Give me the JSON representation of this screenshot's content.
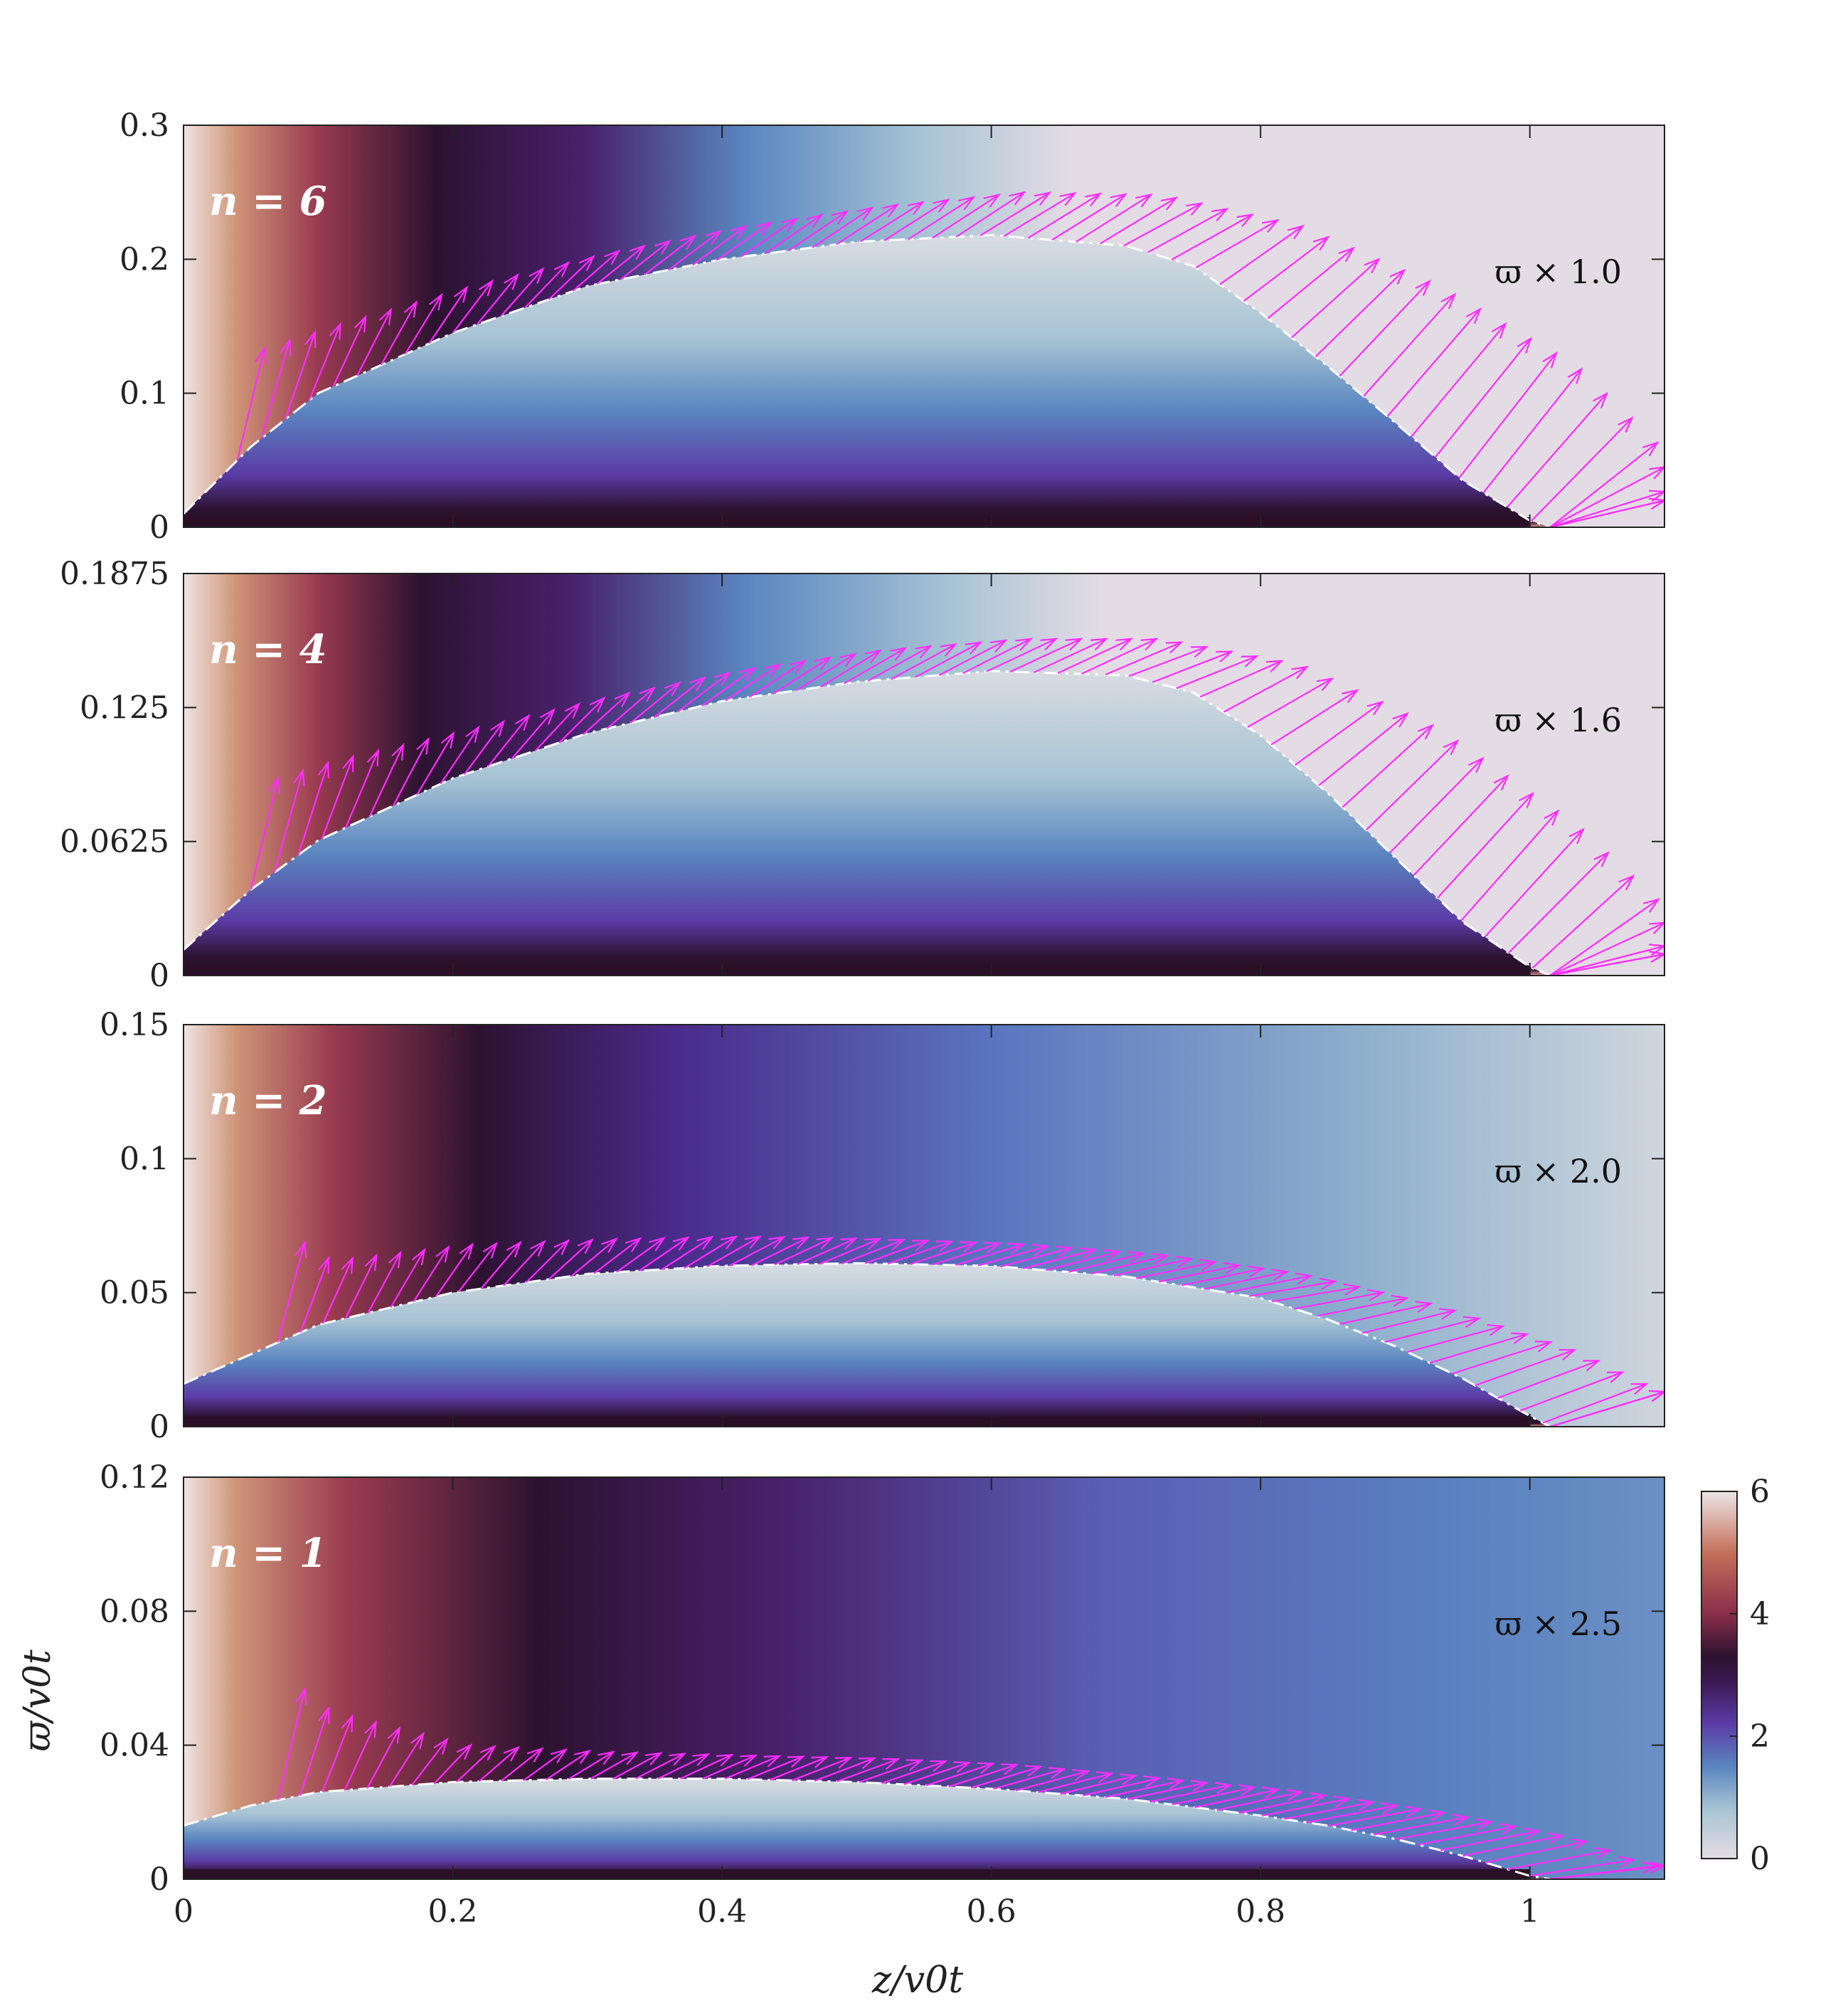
{
  "chart_data": [
    {
      "type": "heatmap",
      "panel_label": "n = 6",
      "scale_annotation": "ϖ × 1.0",
      "n": 6,
      "scale_factor": 1.0,
      "xlim": [
        0,
        1.1
      ],
      "ylim": [
        0,
        0.3
      ],
      "yticks": [
        0,
        0.1,
        0.2,
        0.3
      ],
      "ytick_labels": [
        "0",
        "0.1",
        "0.2",
        "0.3"
      ],
      "xticks": [
        0,
        0.2,
        0.4,
        0.6,
        0.8,
        1.0
      ],
      "xtick_labels": [],
      "boundary_curve": {
        "z": [
          0,
          0.05,
          0.1,
          0.2,
          0.3,
          0.4,
          0.5,
          0.6,
          0.7,
          0.75,
          0.8,
          0.85,
          0.9,
          0.95,
          1.0,
          1.015
        ],
        "w": [
          0.01,
          0.06,
          0.1,
          0.145,
          0.18,
          0.2,
          0.213,
          0.218,
          0.21,
          0.195,
          0.16,
          0.12,
          0.078,
          0.035,
          0.005,
          0.0
        ]
      },
      "arrow_envelope": {
        "z": [
          0.04,
          0.1,
          0.2,
          0.3,
          0.4,
          0.5,
          0.6,
          0.7,
          0.8,
          0.9,
          1.0,
          1.1
        ],
        "w": [
          0.13,
          0.15,
          0.18,
          0.205,
          0.225,
          0.24,
          0.25,
          0.248,
          0.225,
          0.18,
          0.12,
          0.02
        ]
      }
    },
    {
      "type": "heatmap",
      "panel_label": "n = 4",
      "scale_annotation": "ϖ × 1.6",
      "n": 4,
      "scale_factor": 1.6,
      "xlim": [
        0,
        1.1
      ],
      "ylim": [
        0,
        0.1875
      ],
      "yticks": [
        0,
        0.0625,
        0.125,
        0.1875
      ],
      "ytick_labels": [
        "0",
        "0.0625",
        "0.125",
        "0.1875"
      ],
      "xticks": [
        0,
        0.2,
        0.4,
        0.6,
        0.8,
        1.0
      ],
      "xtick_labels": [],
      "boundary_curve": {
        "z": [
          0,
          0.05,
          0.1,
          0.2,
          0.3,
          0.4,
          0.5,
          0.6,
          0.7,
          0.75,
          0.8,
          0.85,
          0.9,
          0.95,
          1.0,
          1.015
        ],
        "w": [
          0.012,
          0.04,
          0.063,
          0.092,
          0.113,
          0.128,
          0.137,
          0.142,
          0.14,
          0.132,
          0.112,
          0.085,
          0.055,
          0.025,
          0.004,
          0.0
        ]
      },
      "arrow_envelope": {
        "z": [
          0.05,
          0.1,
          0.2,
          0.3,
          0.4,
          0.5,
          0.6,
          0.7,
          0.8,
          0.9,
          1.0,
          1.1
        ],
        "w": [
          0.09,
          0.1,
          0.115,
          0.13,
          0.143,
          0.152,
          0.157,
          0.157,
          0.145,
          0.115,
          0.07,
          0.01
        ]
      }
    },
    {
      "type": "heatmap",
      "panel_label": "n = 2",
      "scale_annotation": "ϖ × 2.0",
      "n": 2,
      "scale_factor": 2.0,
      "xlim": [
        0,
        1.1
      ],
      "ylim": [
        0,
        0.15
      ],
      "yticks": [
        0,
        0.05,
        0.1,
        0.15
      ],
      "ytick_labels": [
        "0",
        "0.05",
        "0.1",
        "0.15"
      ],
      "xticks": [
        0,
        0.2,
        0.4,
        0.6,
        0.8,
        1.0
      ],
      "xtick_labels": [],
      "boundary_curve": {
        "z": [
          0,
          0.05,
          0.1,
          0.2,
          0.3,
          0.4,
          0.5,
          0.6,
          0.7,
          0.8,
          0.85,
          0.9,
          0.95,
          1.0,
          1.015
        ],
        "w": [
          0.016,
          0.027,
          0.038,
          0.05,
          0.057,
          0.06,
          0.061,
          0.06,
          0.056,
          0.048,
          0.04,
          0.03,
          0.018,
          0.004,
          0.0
        ]
      },
      "arrow_envelope": {
        "z": [
          0.07,
          0.1,
          0.2,
          0.3,
          0.4,
          0.5,
          0.6,
          0.7,
          0.8,
          0.9,
          1.0,
          1.06
        ],
        "w": [
          0.072,
          0.062,
          0.068,
          0.07,
          0.071,
          0.07,
          0.068,
          0.064,
          0.057,
          0.045,
          0.028,
          0.013
        ]
      }
    },
    {
      "type": "heatmap",
      "panel_label": "n = 1",
      "scale_annotation": "ϖ × 2.5",
      "n": 1,
      "scale_factor": 2.5,
      "xlim": [
        0,
        1.1
      ],
      "ylim": [
        0,
        0.12
      ],
      "yticks": [
        0,
        0.04,
        0.08,
        0.12
      ],
      "ytick_labels": [
        "0",
        "0.04",
        "0.08",
        "0.12"
      ],
      "xticks": [
        0,
        0.2,
        0.4,
        0.6,
        0.8,
        1.0
      ],
      "xtick_labels": [
        "0",
        "0.2",
        "0.4",
        "0.6",
        "0.8",
        "1"
      ],
      "boundary_curve": {
        "z": [
          0,
          0.05,
          0.1,
          0.2,
          0.3,
          0.4,
          0.5,
          0.6,
          0.7,
          0.8,
          0.85,
          0.9,
          0.95,
          1.0,
          1.015
        ],
        "w": [
          0.016,
          0.022,
          0.026,
          0.029,
          0.03,
          0.03,
          0.029,
          0.027,
          0.024,
          0.019,
          0.016,
          0.012,
          0.007,
          0.001,
          0.0
        ]
      },
      "arrow_envelope": {
        "z": [
          0.07,
          0.1,
          0.2,
          0.3,
          0.4,
          0.5,
          0.6,
          0.7,
          0.8,
          0.9,
          1.0,
          1.05
        ],
        "w": [
          0.06,
          0.05,
          0.04,
          0.038,
          0.037,
          0.036,
          0.034,
          0.03,
          0.026,
          0.02,
          0.012,
          0.004
        ]
      }
    }
  ],
  "axes": {
    "xlabel": "z/v0t",
    "ylabel": "ϖ/v0t"
  },
  "colorbar": {
    "range": [
      0,
      6
    ],
    "ticks": [
      0,
      2,
      4,
      6
    ],
    "tick_labels": [
      "0",
      "2",
      "4",
      "6"
    ],
    "colors": [
      {
        "value": 0,
        "color": "#e4dce4"
      },
      {
        "value": 0.8,
        "color": "#a8c4d4"
      },
      {
        "value": 1.5,
        "color": "#5a86c0"
      },
      {
        "value": 2.2,
        "color": "#5b3ba6"
      },
      {
        "value": 2.9,
        "color": "#3b1952"
      },
      {
        "value": 3.3,
        "color": "#2c1230"
      },
      {
        "value": 4.0,
        "color": "#8a2e4a"
      },
      {
        "value": 5.0,
        "color": "#c4705a"
      },
      {
        "value": 6,
        "color": "#ece6e8"
      }
    ]
  },
  "colors": {
    "arrows": "#ff2cff",
    "boundary": "#ffffff",
    "frame": "#222222"
  }
}
